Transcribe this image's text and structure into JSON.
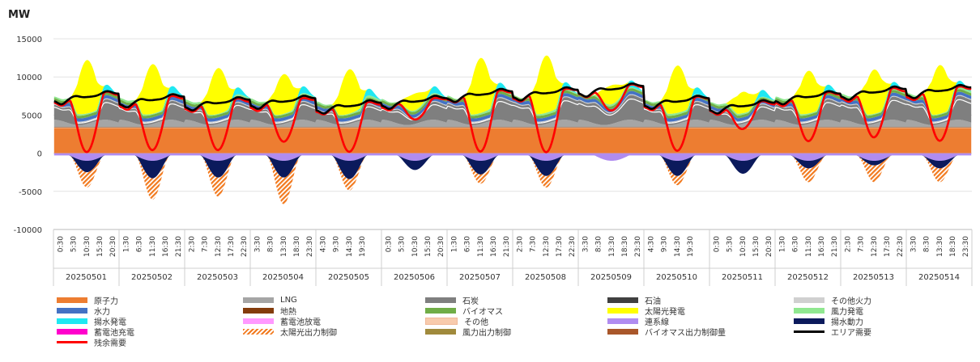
{
  "chart_data": {
    "type": "area",
    "unit_label": "MW",
    "ylim": [
      -10000,
      15000
    ],
    "yticks": [
      15000,
      10000,
      5000,
      0,
      -5000,
      -10000
    ],
    "days": [
      "20250501",
      "20250502",
      "20250503",
      "20250504",
      "20250505",
      "20250506",
      "20250507",
      "20250508",
      "20250509",
      "20250510",
      "20250511",
      "20250512",
      "20250513",
      "20250514"
    ],
    "time_ticks": [
      [
        "0:30",
        "5:30",
        "10:30",
        "15:30",
        "20:30"
      ],
      [
        "1:30",
        "6:30",
        "11:30",
        "16:30",
        "21:30"
      ],
      [
        "2:30",
        "7:30",
        "12:30",
        "17:30",
        "22:30"
      ],
      [
        "3:30",
        "8:30",
        "13:30",
        "18:30",
        "23:30"
      ],
      [
        "4:30",
        "9:30",
        "14:30",
        "19:30"
      ],
      [
        "0:30",
        "5:30",
        "10:30",
        "15:30",
        "20:30"
      ],
      [
        "1:30",
        "6:30",
        "11:30",
        "16:30",
        "21:30"
      ],
      [
        "2:30",
        "7:30",
        "12:30",
        "17:30",
        "22:30"
      ],
      [
        "3:30",
        "8:30",
        "13:30",
        "18:30",
        "23:30"
      ],
      [
        "4:30",
        "9:30",
        "14:30",
        "19:30"
      ],
      [
        "0:30",
        "5:30",
        "10:30",
        "15:30",
        "20:30"
      ],
      [
        "1:30",
        "6:30",
        "11:30",
        "16:30",
        "21:30"
      ],
      [
        "2:30",
        "7:30",
        "12:30",
        "17:30",
        "22:30"
      ],
      [
        "3:30",
        "8:30",
        "13:30",
        "18:30",
        "23:30"
      ]
    ],
    "daily": {
      "solar_peak": [
        7000,
        6500,
        6000,
        5200,
        5800,
        2200,
        7200,
        7500,
        2500,
        6200,
        2800,
        5600,
        5800,
        6400
      ],
      "solar_curtail": [
        2000,
        2800,
        2500,
        3500,
        1500,
        0,
        1200,
        1500,
        0,
        1200,
        0,
        1800,
        2200,
        1800
      ],
      "pump_peak": [
        1500,
        2300,
        2200,
        2200,
        2400,
        1200,
        1800,
        2000,
        0,
        2000,
        1700,
        1000,
        600,
        1000
      ],
      "area_demand": [
        8200,
        7800,
        7400,
        7600,
        7000,
        7600,
        8500,
        8700,
        9200,
        7600,
        7000,
        8200,
        8800,
        9000
      ]
    },
    "series": [
      {
        "name": "原子力",
        "color": "#ed7d31"
      },
      {
        "name": "水力",
        "color": "#4472c4"
      },
      {
        "name": "揚水発電",
        "color": "#1fe8f2"
      },
      {
        "name": "蓄電池充電",
        "color": "#ff00cc"
      },
      {
        "name": "残余需要",
        "color": "#ff0000"
      },
      {
        "name": "LNG",
        "color": "#a5a5a5"
      },
      {
        "name": "地熱",
        "color": "#843c0c"
      },
      {
        "name": "蓄電池放電",
        "color": "#ff99ff"
      },
      {
        "name": "太陽光出力制御",
        "color": "#f27a1f"
      },
      {
        "name": "石炭",
        "color": "#7f7f7f"
      },
      {
        "name": "バイオマス",
        "color": "#70ad47"
      },
      {
        "name": "その他",
        "color": "#f8cbad"
      },
      {
        "name": "風力出力制御",
        "color": "#a08a3c"
      },
      {
        "name": "石油",
        "color": "#404040"
      },
      {
        "name": "太陽光発電",
        "color": "#ffff00"
      },
      {
        "name": "連系線",
        "color": "#b08cf0"
      },
      {
        "name": "バイオマス出力制御量",
        "color": "#a9572a"
      },
      {
        "name": "その他火力",
        "color": "#d0d0d0"
      },
      {
        "name": "風力発電",
        "color": "#90e890"
      },
      {
        "name": "揚水動力",
        "color": "#0b1a5c"
      },
      {
        "name": "エリア需要",
        "color": "#000000"
      }
    ]
  }
}
